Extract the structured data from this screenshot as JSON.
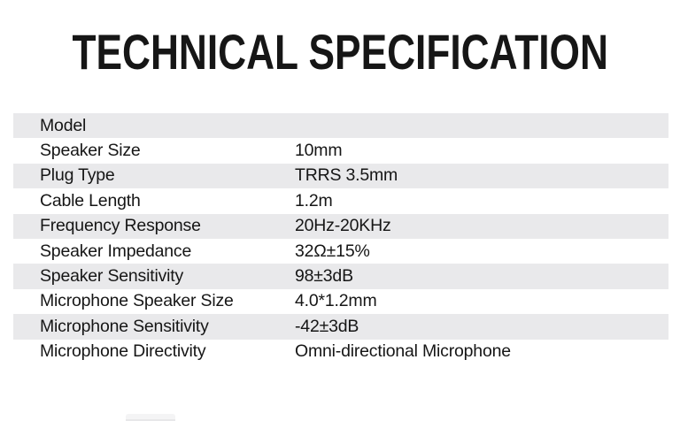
{
  "page": {
    "background_color": "#ffffff",
    "text_color": "#161616"
  },
  "header": {
    "title": "TECHNICAL SPECIFICATION"
  },
  "table": {
    "stripe_color": "#e9e9eb",
    "rows": [
      {
        "label": "Model",
        "value": ""
      },
      {
        "label": "Speaker Size",
        "value": "10mm"
      },
      {
        "label": "Plug Type",
        "value": "TRRS 3.5mm"
      },
      {
        "label": "Cable Length",
        "value": "1.2m"
      },
      {
        "label": "Frequency Response",
        "value": "20Hz-20KHz"
      },
      {
        "label": "Speaker Impedance",
        "value": "32Ω±15%"
      },
      {
        "label": "Speaker Sensitivity",
        "value": "98±3dB"
      },
      {
        "label": "Microphone Speaker Size",
        "value": "4.0*1.2mm"
      },
      {
        "label": "Microphone Sensitivity",
        "value": "-42±3dB"
      },
      {
        "label": "Microphone Directivity",
        "value": "Omni-directional Microphone"
      }
    ]
  }
}
